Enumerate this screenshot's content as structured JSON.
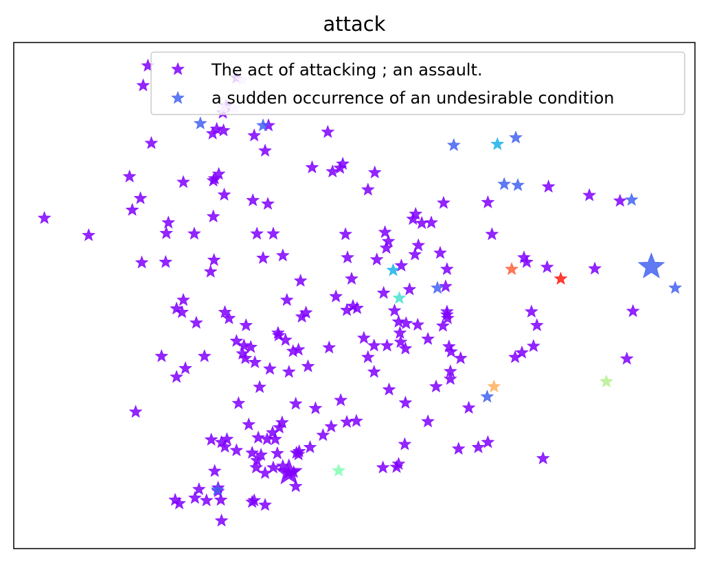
{
  "chart_data": {
    "type": "scatter",
    "title": "attack",
    "xlabel": "",
    "ylabel": "",
    "xlim": [
      0,
      100
    ],
    "ylim": [
      0,
      100
    ],
    "grid": false,
    "ticks": "none",
    "marker": "star",
    "legend": {
      "placement": "top-right",
      "entries": [
        {
          "label": "The act of attacking ; an assault.",
          "color": "#8000ff"
        },
        {
          "label": "a sudden occurrence of an undesirable condition",
          "color": "#4363f0"
        }
      ]
    },
    "series": [
      {
        "name": "The act of attacking ; an assault.",
        "color": "#8000ff",
        "points": [
          [
            19.7,
            95.4
          ],
          [
            19.0,
            91.5
          ],
          [
            32.7,
            93.0
          ],
          [
            31.2,
            87.5
          ],
          [
            30.7,
            86.1
          ],
          [
            29.2,
            82.0
          ],
          [
            30.8,
            82.6
          ],
          [
            20.2,
            80.1
          ],
          [
            37.4,
            83.6
          ],
          [
            46.1,
            82.3
          ],
          [
            35.3,
            81.6
          ],
          [
            29.8,
            82.9
          ],
          [
            36.9,
            78.6
          ],
          [
            43.8,
            75.3
          ],
          [
            46.8,
            74.5
          ],
          [
            47.9,
            75.2
          ],
          [
            53.0,
            74.3
          ],
          [
            48.3,
            76.0
          ],
          [
            17.0,
            73.5
          ],
          [
            24.9,
            72.4
          ],
          [
            29.5,
            73.1
          ],
          [
            30.1,
            74.0
          ],
          [
            29.3,
            72.7
          ],
          [
            30.9,
            69.9
          ],
          [
            52.0,
            70.9
          ],
          [
            18.6,
            69.2
          ],
          [
            17.4,
            66.9
          ],
          [
            35.1,
            68.8
          ],
          [
            37.3,
            68.1
          ],
          [
            4.5,
            65.3
          ],
          [
            11.0,
            61.9
          ],
          [
            22.7,
            64.4
          ],
          [
            22.4,
            62.3
          ],
          [
            26.5,
            62.2
          ],
          [
            29.3,
            65.6
          ],
          [
            35.7,
            62.2
          ],
          [
            38.1,
            62.2
          ],
          [
            48.7,
            62.1
          ],
          [
            54.5,
            62.5
          ],
          [
            55.0,
            60.7
          ],
          [
            59.0,
            66.1
          ],
          [
            63.1,
            68.3
          ],
          [
            58.6,
            65.1
          ],
          [
            59.9,
            64.3
          ],
          [
            61.3,
            64.4
          ],
          [
            69.6,
            68.4
          ],
          [
            70.2,
            62.1
          ],
          [
            78.5,
            71.5
          ],
          [
            84.5,
            69.8
          ],
          [
            89.0,
            68.7
          ],
          [
            18.8,
            56.5
          ],
          [
            22.3,
            56.6
          ],
          [
            29.4,
            57.0
          ],
          [
            28.9,
            54.7
          ],
          [
            36.6,
            57.4
          ],
          [
            39.5,
            57.9
          ],
          [
            49.0,
            57.5
          ],
          [
            53.3,
            57.1
          ],
          [
            54.7,
            59.4
          ],
          [
            62.6,
            58.4
          ],
          [
            63.6,
            55.2
          ],
          [
            74.9,
            57.5
          ],
          [
            75.3,
            56.6
          ],
          [
            78.3,
            55.6
          ],
          [
            85.3,
            55.3
          ],
          [
            42.1,
            52.9
          ],
          [
            47.3,
            49.8
          ],
          [
            49.8,
            47.9
          ],
          [
            50.4,
            47.5
          ],
          [
            24.9,
            49.1
          ],
          [
            23.9,
            47.4
          ],
          [
            24.7,
            46.7
          ],
          [
            31.0,
            46.7
          ],
          [
            31.6,
            45.5
          ],
          [
            26.8,
            44.6
          ],
          [
            40.1,
            49.1
          ],
          [
            42.9,
            46.6
          ],
          [
            48.9,
            47.1
          ],
          [
            55.9,
            47.0
          ],
          [
            56.5,
            44.8
          ],
          [
            57.6,
            44.5
          ],
          [
            59.3,
            44.2
          ],
          [
            63.6,
            46.8
          ],
          [
            63.7,
            45.5
          ],
          [
            63.0,
            44.0
          ],
          [
            63.6,
            46.2
          ],
          [
            76.0,
            46.8
          ],
          [
            76.8,
            44.1
          ],
          [
            90.9,
            46.9
          ],
          [
            34.1,
            44.1
          ],
          [
            38.8,
            42.6
          ],
          [
            38.9,
            42.1
          ],
          [
            32.7,
            41.0
          ],
          [
            33.8,
            40.1
          ],
          [
            34.8,
            39.8
          ],
          [
            34.0,
            37.6
          ],
          [
            35.4,
            36.8
          ],
          [
            41.8,
            39.3
          ],
          [
            46.3,
            39.7
          ],
          [
            51.4,
            41.6
          ],
          [
            52.9,
            40.1
          ],
          [
            54.8,
            40.1
          ],
          [
            56.8,
            40.8
          ],
          [
            57.5,
            39.5
          ],
          [
            56.7,
            42.6
          ],
          [
            60.8,
            41.4
          ],
          [
            63.9,
            39.9
          ],
          [
            64.2,
            38.9
          ],
          [
            65.6,
            37.6
          ],
          [
            73.6,
            37.8
          ],
          [
            74.6,
            38.7
          ],
          [
            76.3,
            40.0
          ],
          [
            90.0,
            37.5
          ],
          [
            21.7,
            38.0
          ],
          [
            25.2,
            35.6
          ],
          [
            23.9,
            33.9
          ],
          [
            37.6,
            35.5
          ],
          [
            40.4,
            34.9
          ],
          [
            43.2,
            36.0
          ],
          [
            36.1,
            31.9
          ],
          [
            17.9,
            27.0
          ],
          [
            33.0,
            28.7
          ],
          [
            41.4,
            28.6
          ],
          [
            44.3,
            27.7
          ],
          [
            48.0,
            29.3
          ],
          [
            55.1,
            31.4
          ],
          [
            57.5,
            28.8
          ],
          [
            62.0,
            32.0
          ],
          [
            64.1,
            33.5
          ],
          [
            64.1,
            35.0
          ],
          [
            66.8,
            27.8
          ],
          [
            34.5,
            24.5
          ],
          [
            39.0,
            23.9
          ],
          [
            39.4,
            24.9
          ],
          [
            46.6,
            24.1
          ],
          [
            48.9,
            25.0
          ],
          [
            50.3,
            25.2
          ],
          [
            60.8,
            25.1
          ],
          [
            45.4,
            22.4
          ],
          [
            29.0,
            21.5
          ],
          [
            31.3,
            21.6
          ],
          [
            35.9,
            21.9
          ],
          [
            37.2,
            21.6
          ],
          [
            38.4,
            21.6
          ],
          [
            38.0,
            22.9
          ],
          [
            30.5,
            21.0
          ],
          [
            31.0,
            20.1
          ],
          [
            32.7,
            19.4
          ],
          [
            35.0,
            18.9
          ],
          [
            36.3,
            18.5
          ],
          [
            41.8,
            18.6
          ],
          [
            43.5,
            20.0
          ],
          [
            57.4,
            20.6
          ],
          [
            65.3,
            19.7
          ],
          [
            68.2,
            20.0
          ],
          [
            69.6,
            21.0
          ],
          [
            35.7,
            17.4
          ],
          [
            38.7,
            18.8
          ],
          [
            41.5,
            18.9
          ],
          [
            41.9,
            19.2
          ],
          [
            35.6,
            16.0
          ],
          [
            38.1,
            16.0
          ],
          [
            39.5,
            16.3
          ],
          [
            29.5,
            15.3
          ],
          [
            36.9,
            14.9
          ],
          [
            41.1,
            15.1
          ],
          [
            54.2,
            16.0
          ],
          [
            56.5,
            16.7
          ],
          [
            56.2,
            16.1
          ],
          [
            77.7,
            17.8
          ],
          [
            30.0,
            12.0
          ],
          [
            41.4,
            12.3
          ],
          [
            23.7,
            9.6
          ],
          [
            26.6,
            10.0
          ],
          [
            28.3,
            9.5
          ],
          [
            30.4,
            9.6
          ],
          [
            30.0,
            11.3
          ],
          [
            27.2,
            11.7
          ],
          [
            35.0,
            9.2
          ],
          [
            35.3,
            9.5
          ],
          [
            36.9,
            8.6
          ],
          [
            24.3,
            8.9
          ],
          [
            30.5,
            5.5
          ],
          [
            40.3,
            15.0
          ],
          [
            58.9,
            58.1
          ],
          [
            59.4,
            59.9
          ],
          [
            56.9,
            55.9
          ],
          [
            63.4,
            51.8
          ],
          [
            58.1,
            51.2
          ],
          [
            49.6,
            53.3
          ],
          [
            54.3,
            50.5
          ],
          [
            42.3,
            45.8
          ],
          [
            41.0,
            39.0
          ],
          [
            52.0,
            37.8
          ],
          [
            52.9,
            34.9
          ],
          [
            33.6,
            38.5
          ],
          [
            39.9,
            41.2
          ],
          [
            28.0,
            38.0
          ]
        ],
        "big": [
          [
            40.4,
            15.0
          ]
        ]
      },
      {
        "name": "a sudden occurrence of an undesirable condition",
        "color": "#4363f0",
        "points": [
          [
            27.4,
            84.0
          ],
          [
            36.6,
            83.6
          ],
          [
            64.6,
            79.7
          ],
          [
            73.7,
            81.2
          ],
          [
            72.0,
            72.0
          ],
          [
            74.0,
            71.8
          ],
          [
            90.7,
            68.9
          ],
          [
            97.1,
            51.5
          ],
          [
            62.2,
            51.5
          ],
          [
            69.5,
            30.0
          ],
          [
            29.9,
            11.6
          ]
        ],
        "big": [
          [
            93.6,
            55.7
          ]
        ]
      },
      {
        "name": "",
        "color": "#1ab2e8",
        "points": [
          [
            71.0,
            79.9
          ],
          [
            55.7,
            55.0
          ]
        ]
      },
      {
        "name": "",
        "color": "#ff5f3a",
        "points": [
          [
            73.1,
            55.2
          ]
        ]
      },
      {
        "name": "",
        "color": "#ff1a10",
        "points": [
          [
            80.3,
            53.3
          ]
        ]
      },
      {
        "name": "",
        "color": "#48e0d0",
        "points": [
          [
            56.6,
            49.5
          ]
        ]
      },
      {
        "name": "",
        "color": "#ffb060",
        "points": [
          [
            70.5,
            32.0
          ]
        ]
      },
      {
        "name": "",
        "color": "#b4f090",
        "points": [
          [
            87.0,
            33.0
          ]
        ]
      },
      {
        "name": "",
        "color": "#80ffb0",
        "points": [
          [
            47.7,
            15.4
          ]
        ]
      },
      {
        "name": "",
        "color": "#e8c8ff",
        "points": [
          [
            33.5,
            92.6
          ],
          [
            30.8,
            87.0
          ],
          [
            32.4,
            87.0
          ]
        ]
      }
    ]
  }
}
